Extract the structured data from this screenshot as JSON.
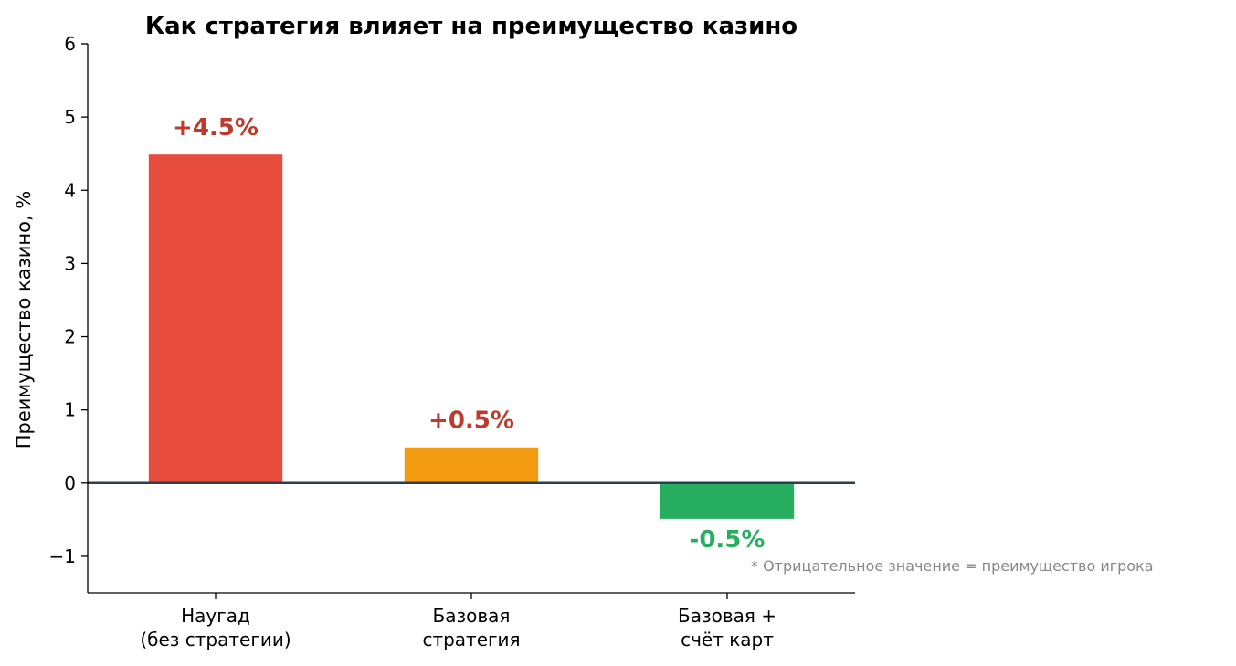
{
  "chart_data": {
    "type": "bar",
    "title": "Как стратегия влияет на преимущество казино",
    "ylabel": "Преимущество казино, %",
    "xlabel": "",
    "ylim": [
      -1.5,
      6
    ],
    "yticks": [
      -1,
      0,
      1,
      2,
      3,
      4,
      5,
      6
    ],
    "ytick_labels": [
      "−1",
      "0",
      "1",
      "2",
      "3",
      "4",
      "5",
      "6"
    ],
    "categories": [
      [
        "Наугад",
        "(без стратегии)"
      ],
      [
        "Базовая",
        "стратегия"
      ],
      [
        "Базовая +",
        "счёт карт"
      ]
    ],
    "values": [
      4.5,
      0.5,
      -0.5
    ],
    "value_labels": [
      "+4.5%",
      "+0.5%",
      "-0.5%"
    ],
    "bar_colors": [
      "#e74c3c",
      "#f39c12",
      "#27ae60"
    ],
    "label_colors": [
      "#c0392b",
      "#c0392b",
      "#27ae60"
    ],
    "zero_line_color": "#2c3e50",
    "grid": false,
    "legend": "none",
    "footnote": "* Отрицательное значение = преимущество игрока"
  }
}
